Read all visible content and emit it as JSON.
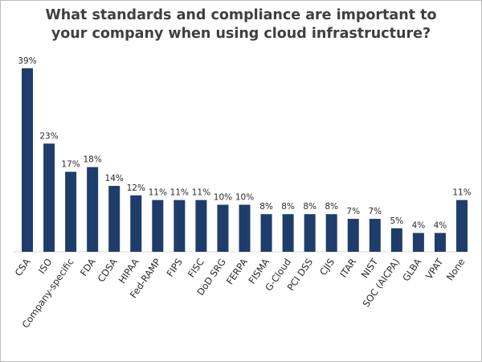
{
  "chart_data": {
    "type": "bar",
    "title_lines": [
      "What standards and compliance are important to",
      "your company when using cloud infrastructure?"
    ],
    "categories": [
      "CSA",
      "ISO",
      "Company-specific",
      "FDA",
      "CDSA",
      "HIPAA",
      "Fed-RAMP",
      "FIPS",
      "FISC",
      "DoD SRG",
      "FERPA",
      "FISMA",
      "G-Cloud",
      "PCI DSS",
      "CJIS",
      "ITAR",
      "NIST",
      "SOC (AICPA)",
      "GLBA",
      "VPAT",
      "None"
    ],
    "values": [
      39,
      23,
      17,
      18,
      14,
      12,
      11,
      11,
      11,
      10,
      10,
      8,
      8,
      8,
      8,
      7,
      7,
      5,
      4,
      4,
      11
    ],
    "value_labels": [
      "39%",
      "23%",
      "17%",
      "18%",
      "14%",
      "12%",
      "11%",
      "11%",
      "11%",
      "10%",
      "10%",
      "8%",
      "8%",
      "8%",
      "8%",
      "7%",
      "7%",
      "5%",
      "4%",
      "4%",
      "11%"
    ],
    "xlabel": "",
    "ylabel": "",
    "ylim": [
      0,
      40
    ],
    "grid": false,
    "legend": "none",
    "bar_color": "#1f3d6a"
  }
}
